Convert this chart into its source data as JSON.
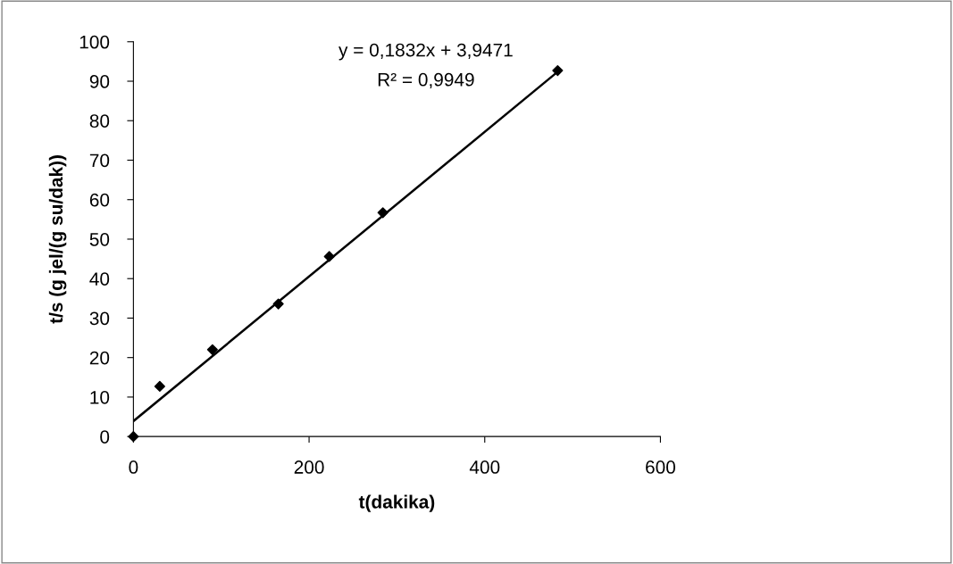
{
  "chart_data": {
    "type": "scatter",
    "xlabel": "t(dakika)",
    "ylabel": "t/s (g jel/(g su/dak))",
    "annotations": [
      "y = 0,1832x + 3,9471",
      "R² = 0,9949"
    ],
    "series": [
      {
        "color": "#000000",
        "marker": "diamond",
        "x": [
          0,
          30,
          90,
          165,
          223,
          284,
          483
        ],
        "values": [
          0,
          12.7,
          22.0,
          33.6,
          45.6,
          56.7,
          92.7
        ]
      },
      {
        "type": "line",
        "color": "#000000",
        "line_style": "solid",
        "x": [
          0,
          483
        ],
        "values": [
          3.9,
          92.4
        ]
      }
    ],
    "xlim": [
      0,
      600
    ],
    "xticks": [
      0,
      200,
      400,
      600
    ],
    "ylim": [
      0,
      100
    ],
    "yticks": [
      0,
      10,
      20,
      30,
      40,
      50,
      60,
      70,
      80,
      90,
      100
    ],
    "grid": false,
    "legend": false
  }
}
